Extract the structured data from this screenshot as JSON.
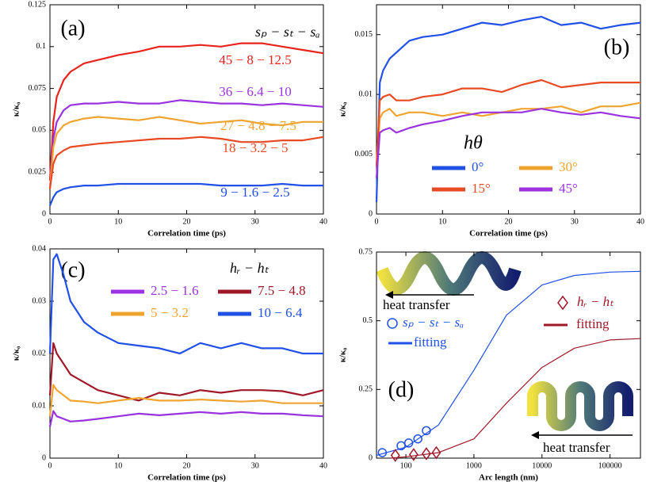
{
  "chart_data": [
    {
      "type": "line",
      "label": "(a)",
      "legend_title": "sₚ − sₜ − sₐ",
      "xlabel": "Correlation time (ps)",
      "ylabel": "κ/κ₀",
      "x": [
        0,
        0.5,
        1,
        2,
        3,
        5,
        7,
        10,
        13,
        16,
        19,
        22,
        25,
        28,
        31,
        34,
        37,
        40
      ],
      "xlim": [
        0,
        40
      ],
      "xticks": [
        0,
        10,
        20,
        30,
        40
      ],
      "ylim": [
        0,
        0.125
      ],
      "yticks": [
        0,
        0.025,
        0.05,
        0.075,
        0.1,
        0.125
      ],
      "legend": "inline",
      "series": [
        {
          "name": "45 − 8 − 12.5",
          "color": "#e8231c",
          "values": [
            0.02,
            0.055,
            0.07,
            0.08,
            0.085,
            0.09,
            0.092,
            0.095,
            0.097,
            0.1,
            0.1,
            0.101,
            0.1,
            0.102,
            0.102,
            0.1,
            0.098,
            0.096
          ]
        },
        {
          "name": "36 − 6.4 − 10",
          "color": "#9a32e0",
          "values": [
            0.015,
            0.045,
            0.055,
            0.062,
            0.065,
            0.066,
            0.066,
            0.067,
            0.066,
            0.066,
            0.068,
            0.067,
            0.066,
            0.066,
            0.065,
            0.066,
            0.065,
            0.064
          ]
        },
        {
          "name": "27 − 4.8 − 7.5",
          "color": "#f0a430",
          "values": [
            0.015,
            0.04,
            0.048,
            0.053,
            0.055,
            0.057,
            0.058,
            0.057,
            0.056,
            0.058,
            0.056,
            0.054,
            0.055,
            0.056,
            0.054,
            0.053,
            0.055,
            0.055
          ]
        },
        {
          "name": "18 − 3.2 − 5",
          "color": "#e84a24",
          "values": [
            0.015,
            0.03,
            0.035,
            0.038,
            0.04,
            0.041,
            0.042,
            0.043,
            0.044,
            0.045,
            0.045,
            0.046,
            0.045,
            0.043,
            0.043,
            0.044,
            0.044,
            0.046
          ]
        },
        {
          "name": "9 − 1.6 − 2.5",
          "color": "#2050e8",
          "values": [
            0.005,
            0.01,
            0.013,
            0.015,
            0.016,
            0.017,
            0.017,
            0.018,
            0.018,
            0.018,
            0.018,
            0.018,
            0.017,
            0.017,
            0.017,
            0.018,
            0.017,
            0.017
          ]
        }
      ]
    },
    {
      "type": "line",
      "label": "(b)",
      "legend_title": "hθ",
      "xlabel": "Correlation time (ps)",
      "ylabel": "κ/κ₀",
      "x": [
        0,
        0.5,
        1,
        2,
        3,
        5,
        7,
        10,
        13,
        16,
        19,
        22,
        25,
        28,
        31,
        34,
        37,
        40
      ],
      "xlim": [
        0,
        40
      ],
      "xticks": [
        0,
        10,
        20,
        30,
        40
      ],
      "ylim": [
        0,
        0.0175
      ],
      "yticks": [
        0,
        0.005,
        0.01,
        0.015
      ],
      "legend": "box",
      "series": [
        {
          "name": "0°",
          "color": "#2050e8",
          "values": [
            0.001,
            0.011,
            0.012,
            0.013,
            0.0135,
            0.0145,
            0.0148,
            0.015,
            0.0155,
            0.016,
            0.0158,
            0.0162,
            0.0165,
            0.0158,
            0.016,
            0.0155,
            0.0158,
            0.016
          ]
        },
        {
          "name": "30°",
          "color": "#f0a430",
          "values": [
            0.004,
            0.008,
            0.0085,
            0.0088,
            0.0082,
            0.0085,
            0.0085,
            0.0082,
            0.0085,
            0.0082,
            0.0085,
            0.0088,
            0.0088,
            0.009,
            0.0085,
            0.009,
            0.009,
            0.0093
          ]
        },
        {
          "name": "15°",
          "color": "#e84a24",
          "values": [
            0.004,
            0.0095,
            0.0098,
            0.01,
            0.0095,
            0.0095,
            0.0098,
            0.01,
            0.0105,
            0.0105,
            0.0102,
            0.0108,
            0.0112,
            0.0106,
            0.0108,
            0.011,
            0.011,
            0.011
          ]
        },
        {
          "name": "45°",
          "color": "#9a32e0",
          "values": [
            0.003,
            0.0068,
            0.007,
            0.0072,
            0.0068,
            0.0072,
            0.0075,
            0.0078,
            0.0082,
            0.0085,
            0.0085,
            0.0085,
            0.0088,
            0.0085,
            0.0083,
            0.0085,
            0.0082,
            0.008
          ]
        }
      ]
    },
    {
      "type": "line",
      "label": "(c)",
      "legend_title": "hᵣ − hₜ",
      "xlabel": "Correlation time (ps)",
      "ylabel": "κ/κ₀",
      "x": [
        0,
        0.5,
        1,
        2,
        3,
        5,
        7,
        10,
        13,
        16,
        19,
        22,
        25,
        28,
        31,
        34,
        37,
        40
      ],
      "xlim": [
        0,
        40
      ],
      "xticks": [
        0,
        10,
        20,
        30,
        40
      ],
      "ylim": [
        0,
        0.04
      ],
      "yticks": [
        0,
        0.01,
        0.02,
        0.03,
        0.04
      ],
      "legend": "box",
      "series": [
        {
          "name": "2.5 − 1.6",
          "color": "#9a32e0",
          "values": [
            0.006,
            0.009,
            0.008,
            0.0075,
            0.007,
            0.0072,
            0.0075,
            0.008,
            0.0085,
            0.0082,
            0.0085,
            0.0088,
            0.0085,
            0.0088,
            0.0085,
            0.0085,
            0.0082,
            0.008
          ]
        },
        {
          "name": "7.5 − 4.8",
          "color": "#a01828",
          "values": [
            0.012,
            0.022,
            0.02,
            0.018,
            0.016,
            0.0145,
            0.013,
            0.012,
            0.011,
            0.0125,
            0.012,
            0.013,
            0.0125,
            0.013,
            0.013,
            0.0128,
            0.012,
            0.013
          ]
        },
        {
          "name": "5 − 3.2",
          "color": "#f0a430",
          "values": [
            0.008,
            0.014,
            0.013,
            0.012,
            0.011,
            0.0108,
            0.0105,
            0.011,
            0.0115,
            0.011,
            0.011,
            0.0112,
            0.011,
            0.0108,
            0.011,
            0.0105,
            0.0105,
            0.0105
          ]
        },
        {
          "name": "10 − 6.4",
          "color": "#2050e8",
          "values": [
            0.02,
            0.038,
            0.039,
            0.035,
            0.03,
            0.026,
            0.024,
            0.022,
            0.0215,
            0.021,
            0.02,
            0.022,
            0.021,
            0.022,
            0.021,
            0.021,
            0.02,
            0.02
          ]
        }
      ]
    },
    {
      "type": "scatter",
      "label": "(d)",
      "xlabel": "Arc length (nm)",
      "ylabel": "κ/κ₀",
      "xscale": "log",
      "xlim": [
        37,
        280000
      ],
      "xticks": [
        100,
        1000,
        10000,
        100000
      ],
      "ylim": [
        0,
        0.75
      ],
      "yticks": [
        0,
        0.25,
        0.5,
        0.75
      ],
      "legend": "box",
      "annotations": [
        "heat transfer",
        "heat transfer"
      ],
      "series": [
        {
          "name": "sₚ − sₜ − sₐ",
          "color": "#2050e8",
          "marker": "circle",
          "x": [
            45,
            85,
            110,
            150,
            200
          ],
          "values": [
            0.02,
            0.045,
            0.055,
            0.07,
            0.1
          ]
        },
        {
          "name": "fitting",
          "color": "#2050e8",
          "marker": "line",
          "x": [
            37,
            100,
            300,
            1000,
            3000,
            10000,
            30000,
            100000,
            280000
          ],
          "values": [
            0.01,
            0.04,
            0.12,
            0.32,
            0.52,
            0.63,
            0.665,
            0.677,
            0.68
          ]
        },
        {
          "name": "hᵣ − hₜ",
          "color": "#a01828",
          "marker": "diamond",
          "x": [
            70,
            130,
            200,
            280
          ],
          "values": [
            0.01,
            0.013,
            0.016,
            0.02
          ]
        },
        {
          "name": "fitting",
          "color": "#a01828",
          "marker": "line",
          "x": [
            60,
            100,
            300,
            1000,
            3000,
            10000,
            30000,
            100000,
            280000
          ],
          "values": [
            0,
            0.005,
            0.02,
            0.07,
            0.2,
            0.33,
            0.4,
            0.43,
            0.435
          ]
        }
      ]
    }
  ]
}
